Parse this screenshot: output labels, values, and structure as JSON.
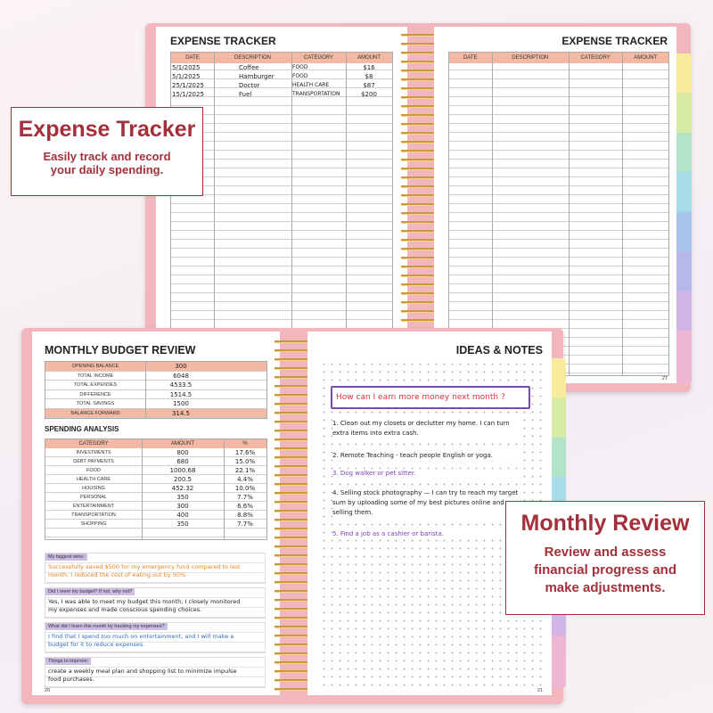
{
  "expense_tracker": {
    "left_title": "EXPENSE TRACKER",
    "right_title": "EXPENSE TRACKER",
    "columns": [
      "DATE",
      "DESCRIPTION",
      "CATEGORY",
      "AMOUNT"
    ],
    "rows": [
      [
        "5/1/2025",
        "Coffee",
        "FOOD",
        "$16"
      ],
      [
        "5/1/2025",
        "Hamburger",
        "FOOD",
        "$8"
      ],
      [
        "25/1/2025",
        "Doctor",
        "HEALTH CARE",
        "$87"
      ],
      [
        "15/1/2025",
        "Fuel",
        "TRANSPORTATION",
        "$200"
      ]
    ],
    "page_number": "27"
  },
  "callouts": [
    {
      "title": "Expense Tracker",
      "text": "Easily track and record your daily spending."
    },
    {
      "title": "Monthly Review",
      "text": "Review and assess financial progress and make adjustments."
    }
  ],
  "budget_review": {
    "title": "MONTHLY BUDGET REVIEW",
    "summary": [
      [
        "OPENING BALANCE",
        "300"
      ],
      [
        "TOTAL INCOME",
        "6048"
      ],
      [
        "TOTAL EXPENSES",
        "4533.5"
      ],
      [
        "DIFFERENCE",
        "1514.5"
      ],
      [
        "TOTAL SAVINGS",
        "1500"
      ],
      [
        "BALANCE FORWARD",
        "314.5"
      ]
    ],
    "spending_title": "SPENDING ANALYSIS",
    "spending_columns": [
      "CATEGORY",
      "AMOUNT",
      "%"
    ],
    "spending_rows": [
      [
        "INVESTMENTS",
        "800",
        "17.6%"
      ],
      [
        "DEBT PAYMENTS",
        "680",
        "15.0%"
      ],
      [
        "FOOD",
        "1000.68",
        "22.1%"
      ],
      [
        "HEALTH CARE",
        "200.5",
        "4.4%"
      ],
      [
        "HOUSING",
        "452.32",
        "10.0%"
      ],
      [
        "PERSONAL",
        "350",
        "7.7%"
      ],
      [
        "ENTERTAINMENT",
        "300",
        "6.6%"
      ],
      [
        "TRANSPORTATION",
        "400",
        "8.8%"
      ],
      [
        "SHOPPING",
        "350",
        "7.7%"
      ]
    ],
    "prompts": [
      {
        "question": "My biggest wins:",
        "answer": "Successfully saved $500 for my emergency fund compared to last month, I reduced the cost of eating out by 50%."
      },
      {
        "question": "Did I meet my budget? If not, why not?",
        "answer": "Yes, I was able to meet my budget this month; I closely monitored my expenses and made conscious spending choices."
      },
      {
        "question": "What did I learn this month by tracking my expenses?",
        "answer": "I find that I spend too much on entertainment, and I will make a budget for it to reduce expenses."
      },
      {
        "question": "Things to improve:",
        "answer": "create a weekly meal plan and shopping list to minimize impulse food purchases."
      }
    ],
    "page_number": "20"
  },
  "ideas_notes": {
    "title": "IDEAS & NOTES",
    "question": "How can I earn more money next month ?",
    "items": [
      "1. Clean out my closets or declutter my home. I can turn extra items into extra cash.",
      "2. Remote Teaching - teach people English or yoga.",
      "3. Dog walker or pet sitter.",
      "4. Selling stock photography — I can try to reach my target sum by uploading some of my best pictures online and selling them.",
      "5. Find a job as a cashier or barista."
    ],
    "page_number": "21"
  }
}
